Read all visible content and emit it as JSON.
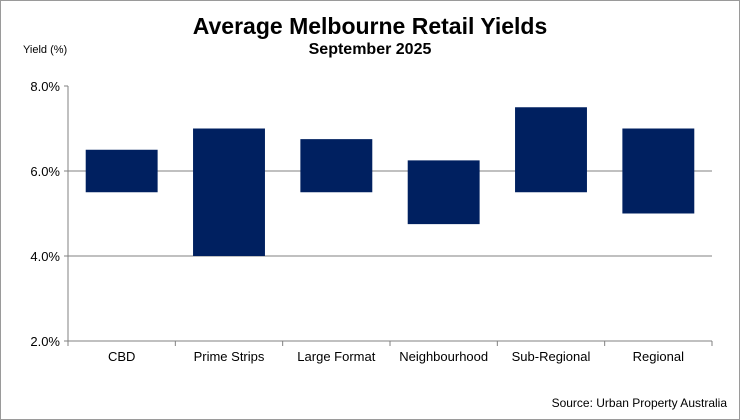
{
  "chart_data": {
    "type": "bar",
    "subtype": "floating-range",
    "title": "Average Melbourne Retail Yields",
    "subtitle": "September 2025",
    "ylabel": "Yield (%)",
    "xlabel": "",
    "ylim": [
      2.0,
      8.0
    ],
    "yticks": [
      "2.0%",
      "4.0%",
      "6.0%",
      "8.0%"
    ],
    "ytick_values": [
      2.0,
      4.0,
      6.0,
      8.0
    ],
    "grid": true,
    "categories": [
      "CBD",
      "Prime Strips",
      "Large Format",
      "Neighbourhood",
      "Sub-Regional",
      "Regional"
    ],
    "low": [
      5.5,
      4.0,
      5.5,
      4.75,
      5.5,
      5.0
    ],
    "high": [
      6.5,
      7.0,
      6.75,
      6.25,
      7.5,
      7.0
    ],
    "bar_color": "#002060",
    "source": "Source: Urban Property Australia"
  }
}
